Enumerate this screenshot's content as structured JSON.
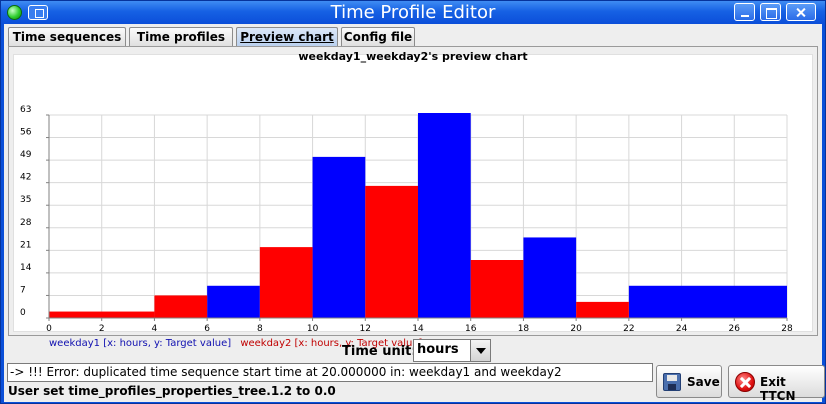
{
  "window": {
    "title": "Time Profile Editor"
  },
  "tabs": [
    {
      "label": "Time sequences"
    },
    {
      "label": "Time profiles"
    },
    {
      "label": "Preview chart"
    },
    {
      "label": "Config file"
    }
  ],
  "chart_title": "weekday1_weekday2's preview chart",
  "chart_data": {
    "type": "bar",
    "title": "weekday1_weekday2's preview chart",
    "xlabel": "",
    "ylabel": "",
    "xlim": [
      0,
      28
    ],
    "ylim": [
      0,
      63
    ],
    "x_ticks": [
      0,
      2,
      4,
      6,
      8,
      10,
      12,
      14,
      16,
      18,
      20,
      22,
      24,
      26,
      28
    ],
    "y_ticks": [
      0,
      7,
      14,
      21,
      28,
      35,
      42,
      49,
      56,
      63
    ],
    "grid": true,
    "legend_position": "bottom-left",
    "series": [
      {
        "name": "weekday1 [x: hours, y: Target value]",
        "color": "#0000ff",
        "bars": [
          {
            "x0": 6,
            "x1": 8,
            "y": 10
          },
          {
            "x0": 10,
            "x1": 12,
            "y": 50
          },
          {
            "x0": 14,
            "x1": 16,
            "y": 66
          },
          {
            "x0": 18,
            "x1": 20,
            "y": 25
          },
          {
            "x0": 22,
            "x1": 28,
            "y": 10
          }
        ]
      },
      {
        "name": "weekday2 [x: hours, y: Target value]",
        "color": "#ff0000",
        "bars": [
          {
            "x0": 0,
            "x1": 4,
            "y": 2
          },
          {
            "x0": 4,
            "x1": 6,
            "y": 7
          },
          {
            "x0": 8,
            "x1": 10,
            "y": 22
          },
          {
            "x0": 12,
            "x1": 14,
            "y": 41
          },
          {
            "x0": 16,
            "x1": 18,
            "y": 18
          },
          {
            "x0": 20,
            "x1": 22,
            "y": 5
          }
        ]
      }
    ]
  },
  "time_unit": {
    "label": "Time unit:",
    "value": "hours"
  },
  "log_message": "-> !!! Error: duplicated time sequence start time at 20.000000 in: weekday1 and weekday2",
  "status_text": "User set time_profiles_properties_tree.1.2 to 0.0",
  "buttons": {
    "save": "Save",
    "exit": "Exit TTCN"
  }
}
